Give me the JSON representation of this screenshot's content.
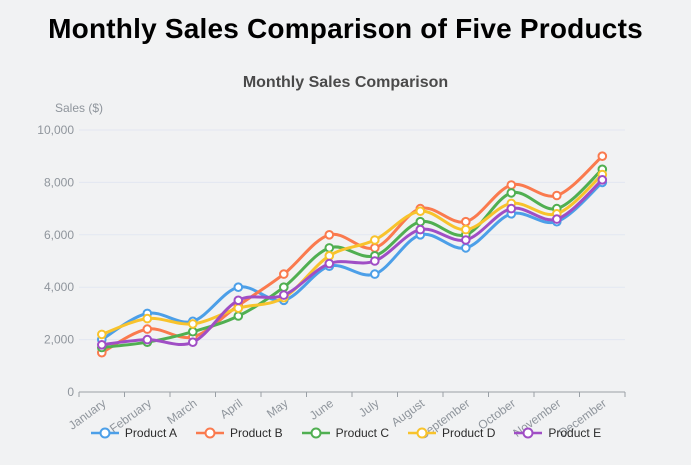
{
  "page": {
    "title": "Monthly Sales Comparison of Five Products"
  },
  "chart_data": {
    "type": "line",
    "title": "Monthly Sales Comparison",
    "xlabel": "",
    "ylabel": "Sales ($)",
    "ylim": [
      0,
      10000
    ],
    "y_tick_step": 2000,
    "y_tick_labels": [
      "0",
      "2,000",
      "4,000",
      "6,000",
      "8,000",
      "10,000"
    ],
    "grid": true,
    "smooth": true,
    "marker": "hollow-circle",
    "legend_position": "bottom",
    "categories": [
      "January",
      "February",
      "March",
      "April",
      "May",
      "June",
      "July",
      "August",
      "September",
      "October",
      "November",
      "December"
    ],
    "series": [
      {
        "name": "Product A",
        "color": "#4C9FE8",
        "values": [
          2000,
          3000,
          2700,
          4000,
          3500,
          4800,
          4500,
          6000,
          5500,
          6800,
          6500,
          8000
        ]
      },
      {
        "name": "Product B",
        "color": "#FA7A4E",
        "values": [
          1500,
          2400,
          2100,
          3300,
          4500,
          6000,
          5500,
          7000,
          6500,
          7900,
          7500,
          9000
        ]
      },
      {
        "name": "Product C",
        "color": "#50AF51",
        "values": [
          1700,
          1900,
          2300,
          2900,
          4000,
          5500,
          5200,
          6500,
          6000,
          7600,
          7000,
          8500
        ]
      },
      {
        "name": "Product D",
        "color": "#F8C32C",
        "values": [
          2200,
          2800,
          2600,
          3200,
          3600,
          5200,
          5800,
          6900,
          6200,
          7200,
          6800,
          8300
        ]
      },
      {
        "name": "Product E",
        "color": "#A04EC5",
        "values": [
          1800,
          2000,
          1900,
          3500,
          3700,
          4900,
          5000,
          6200,
          5800,
          7000,
          6600,
          8100
        ]
      }
    ],
    "colors": {
      "grid_line": "#e2e7f1",
      "axis_line": "#9aa0a6",
      "tick_text": "#8f959c",
      "marker_fill": "#ffffff"
    }
  }
}
